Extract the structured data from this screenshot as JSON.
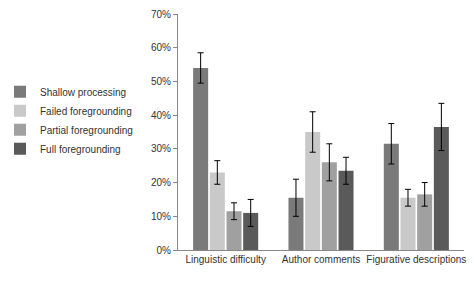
{
  "chart_data": {
    "type": "bar",
    "categories": [
      "Linguistic difficulty",
      "Author comments",
      "Figurative descriptions"
    ],
    "series": [
      {
        "name": "Shallow processing",
        "color": "#7a7a7a",
        "values": [
          54,
          15.5,
          31.5
        ],
        "errors": [
          4.5,
          5.5,
          6
        ]
      },
      {
        "name": "Failed foregrounding",
        "color": "#c9c9c9",
        "values": [
          23,
          35,
          15.5
        ],
        "errors": [
          3.5,
          6,
          2.5
        ]
      },
      {
        "name": "Partial foregrounding",
        "color": "#a0a0a0",
        "values": [
          11.5,
          26,
          16.5
        ],
        "errors": [
          2.5,
          5.5,
          3.5
        ]
      },
      {
        "name": "Full foregrounding",
        "color": "#5a5a5a",
        "values": [
          11,
          23.5,
          36.5
        ],
        "errors": [
          4,
          4,
          7
        ]
      }
    ],
    "ylim": [
      0,
      70
    ],
    "yticks": [
      {
        "value": 0,
        "label": "0%"
      },
      {
        "value": 10,
        "label": "10%"
      },
      {
        "value": 20,
        "label": "20%"
      },
      {
        "value": 30,
        "label": "30%"
      },
      {
        "value": 40,
        "label": "40%"
      },
      {
        "value": 50,
        "label": "50%"
      },
      {
        "value": 60,
        "label": "60%"
      },
      {
        "value": 70,
        "label": "70%"
      }
    ],
    "grid": false,
    "legend": "left"
  }
}
